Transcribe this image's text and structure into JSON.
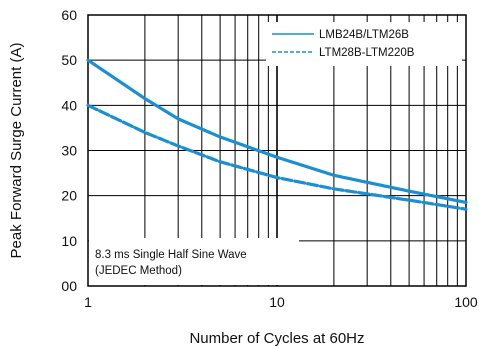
{
  "chart_data": {
    "type": "line",
    "xlabel": "Number of Cycles at 60Hz",
    "ylabel": "Peak Forward Surge Current (A)",
    "xscale": "log",
    "xlim": [
      1,
      100
    ],
    "ylim": [
      0,
      60
    ],
    "xticks": [
      {
        "value": 1,
        "label": "1"
      },
      {
        "value": 10,
        "label": "10"
      },
      {
        "value": 100,
        "label": "100"
      }
    ],
    "yticks": [
      {
        "value": 0,
        "label": "00"
      },
      {
        "value": 10,
        "label": "10"
      },
      {
        "value": 20,
        "label": "20"
      },
      {
        "value": 30,
        "label": "30"
      },
      {
        "value": 40,
        "label": "40"
      },
      {
        "value": 50,
        "label": "50"
      },
      {
        "value": 60,
        "label": "60"
      }
    ],
    "grid": true,
    "legend_position": "top-right",
    "series": [
      {
        "name": "LMB24B/LTM26B",
        "style": "solid",
        "color": "#1a8fd1",
        "x": [
          1,
          2,
          3,
          5,
          10,
          20,
          50,
          100
        ],
        "y": [
          50,
          41.5,
          37,
          33,
          28.5,
          24.5,
          21,
          18.5
        ]
      },
      {
        "name": "LTM28B-LTM220B",
        "style": "dashed",
        "color": "#1a8fd1",
        "x": [
          1,
          2,
          3,
          5,
          10,
          20,
          50,
          100
        ],
        "y": [
          40,
          34,
          31,
          27.5,
          24,
          21.5,
          19,
          17
        ]
      }
    ],
    "annotation": {
      "lines": [
        "8.3 ms Single Half Sine Wave",
        "(JEDEC Method)"
      ],
      "position": "bottom-left"
    }
  }
}
